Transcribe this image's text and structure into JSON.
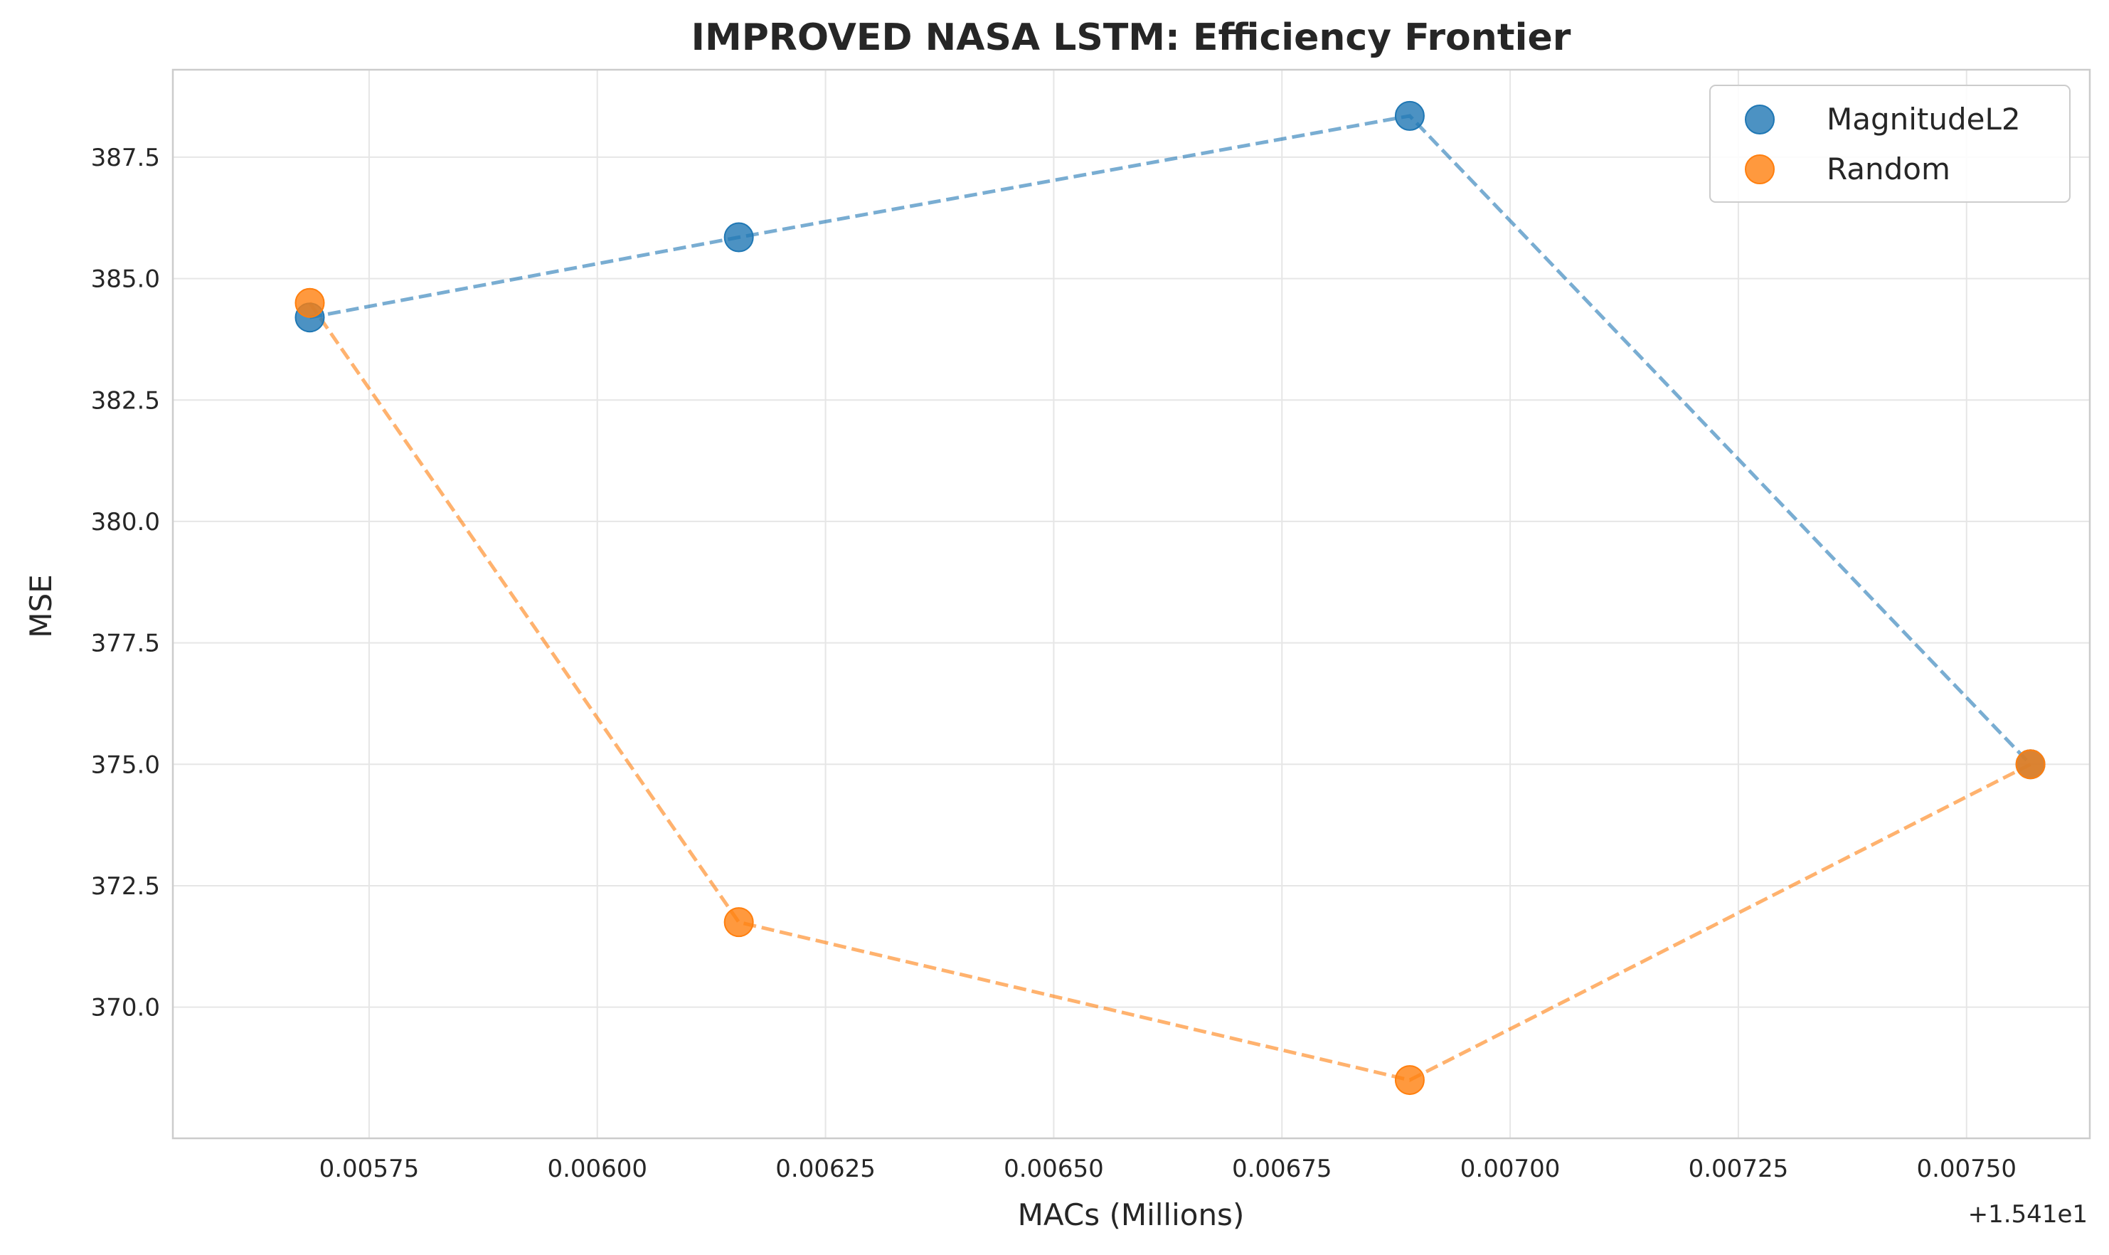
{
  "chart_data": {
    "type": "scatter",
    "title": "IMPROVED NASA LSTM: Efficiency Frontier",
    "xlabel": "MACs (Millions)",
    "ylabel": "MSE",
    "x_offset_label": "+1.541e1",
    "x_offset": 15.41,
    "xlim": [
      0.005535,
      0.007635
    ],
    "ylim": [
      367.3,
      389.3
    ],
    "x_ticks": [
      0.00575,
      0.006,
      0.00625,
      0.0065,
      0.00675,
      0.007,
      0.00725,
      0.0075
    ],
    "x_tick_labels": [
      "0.00575",
      "0.00600",
      "0.00625",
      "0.00650",
      "0.00675",
      "0.00700",
      "0.00725",
      "0.00750"
    ],
    "y_ticks": [
      370.0,
      372.5,
      375.0,
      377.5,
      380.0,
      382.5,
      385.0,
      387.5
    ],
    "y_tick_labels": [
      "370.0",
      "372.5",
      "375.0",
      "377.5",
      "380.0",
      "382.5",
      "385.0",
      "387.5"
    ],
    "grid": true,
    "legend_position": "top-right",
    "series": [
      {
        "name": "MagnitudeL2",
        "color": "#1f77b4",
        "line_style": "dashed",
        "x": [
          0.005685,
          0.006155,
          0.00689,
          0.00757
        ],
        "y": [
          384.2,
          385.85,
          388.35,
          375.0
        ]
      },
      {
        "name": "Random",
        "color": "#ff7f0e",
        "line_style": "dashed",
        "x": [
          0.005685,
          0.006155,
          0.00689,
          0.00757
        ],
        "y": [
          384.5,
          371.75,
          368.5,
          375.0
        ]
      }
    ]
  }
}
